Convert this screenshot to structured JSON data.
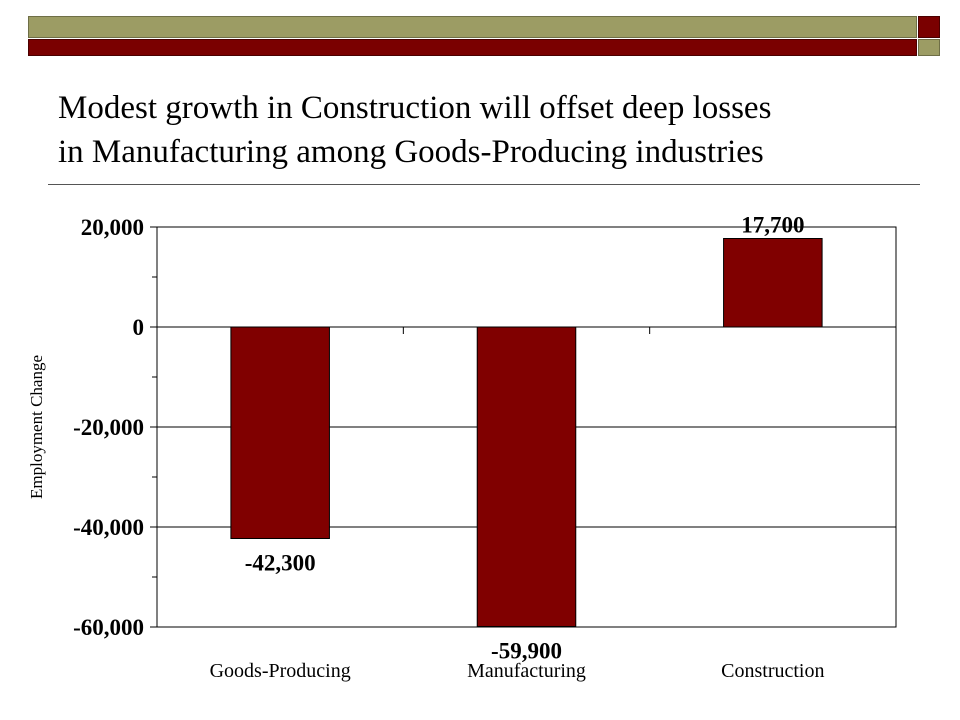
{
  "slide": {
    "title_line1": "Modest growth in Construction will offset deep losses",
    "title_line2": "in Manufacturing among Goods-Producing industries"
  },
  "colors": {
    "bar": "#800000",
    "accent_olive": "#9c9c64",
    "accent_red": "#7a0000"
  },
  "chart_data": {
    "type": "bar",
    "title": "",
    "xlabel": "",
    "ylabel": "Employment Change",
    "categories": [
      "Goods-Producing",
      "Manufacturing",
      "Construction"
    ],
    "values": [
      -42300,
      -59900,
      17700
    ],
    "data_labels": [
      "-42,300",
      "-59,900",
      "17,700"
    ],
    "ylim": [
      -60000,
      20000
    ],
    "y_ticks": [
      20000,
      0,
      -20000,
      -40000,
      -60000
    ],
    "y_tick_labels": [
      "20,000",
      "0",
      "-20,000",
      "-40,000",
      "-60,000"
    ],
    "grid": true,
    "legend": "none"
  }
}
